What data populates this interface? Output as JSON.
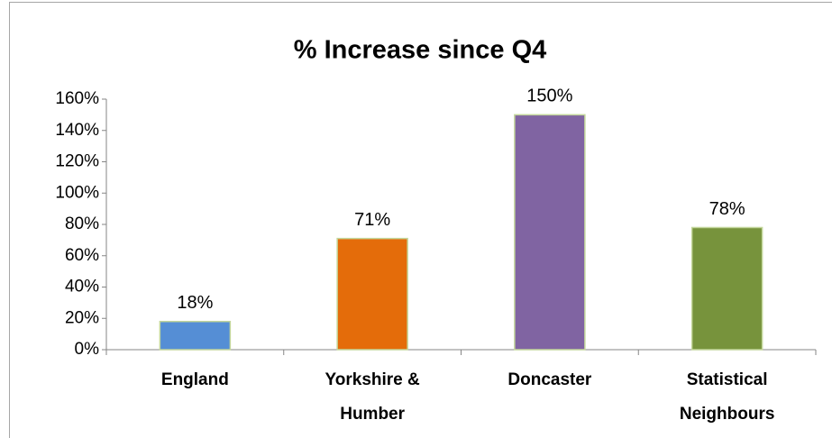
{
  "chart_data": {
    "type": "bar",
    "title": "% Increase since Q4",
    "categories": [
      "England",
      "Yorkshire & Humber",
      "Doncaster",
      "Statistical Neighbours"
    ],
    "values": [
      18,
      71,
      150,
      78
    ],
    "value_labels": [
      "18%",
      "71%",
      "150%",
      "78%"
    ],
    "colors": [
      "#558ed5",
      "#e46c0a",
      "#8064a2",
      "#77933c"
    ],
    "ylim": [
      0,
      160
    ],
    "yticks": [
      {
        "value": 0,
        "label": "0%"
      },
      {
        "value": 20,
        "label": "20%"
      },
      {
        "value": 40,
        "label": "40%"
      },
      {
        "value": 60,
        "label": "60%"
      },
      {
        "value": 80,
        "label": "80%"
      },
      {
        "value": 100,
        "label": "100%"
      },
      {
        "value": 120,
        "label": "120%"
      },
      {
        "value": 140,
        "label": "140%"
      },
      {
        "value": 160,
        "label": "160%"
      }
    ],
    "grid": false
  }
}
